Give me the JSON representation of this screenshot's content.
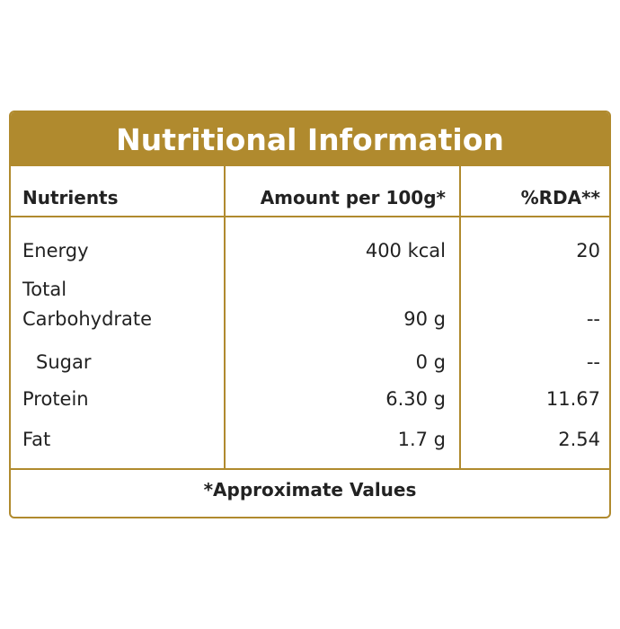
{
  "table": {
    "title": "Nutritional Information",
    "header": [
      "Nutrients",
      "Amount per 100g*",
      "%RDA**"
    ],
    "rows": [
      [
        "Energy",
        "400 kcal",
        "20"
      ],
      [
        "Total Carbohydrate",
        "90 g",
        "--"
      ],
      [
        "Sugar",
        "0 g",
        "--"
      ],
      [
        "Protein",
        "6.30 g",
        "11.67"
      ],
      [
        "Fat",
        "1.7 g",
        "2.54"
      ]
    ],
    "footnote": "*Approximate Values"
  }
}
